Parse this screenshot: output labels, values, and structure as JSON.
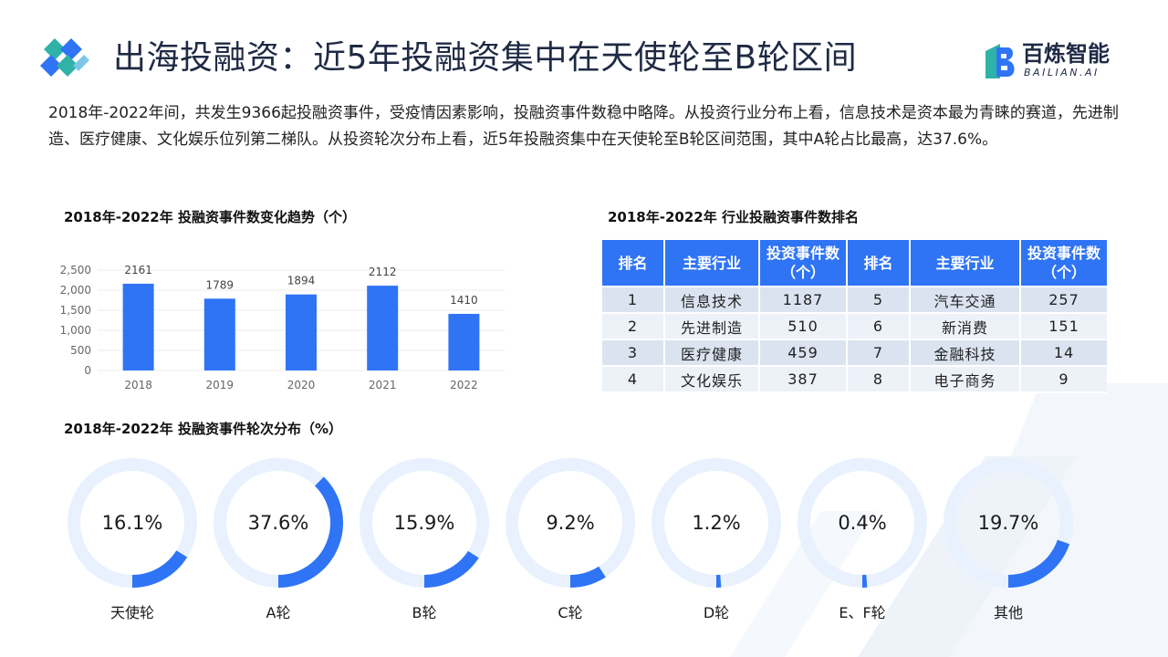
{
  "header": {
    "title": "出海投融资：近5年投融资集中在天使轮至B轮区间",
    "brand_name": "百炼智能",
    "brand_sub": "BAILIAN.AI"
  },
  "summary": "2018年-2022年间，共发生9366起投融资事件，受疫情因素影响，投融资事件数稳中略降。从投资行业分布上看，信息技术是资本最为青睐的赛道，先进制造、医疗健康、文化娱乐位列第二梯队。从投资轮次分布上看，近5年投融资集中在天使轮至B轮区间范围，其中A轮占比最高，达37.6%。",
  "colors": {
    "accent": "#2f74f5",
    "ring_track": "#e8f1fd",
    "grid": "#ececec",
    "table_header": "#2f74f5"
  },
  "chart_data": [
    {
      "type": "bar",
      "title": "2018年-2022年 投融资事件数变化趋势（个）",
      "categories": [
        "2018",
        "2019",
        "2020",
        "2021",
        "2022"
      ],
      "values": [
        2161,
        1789,
        1894,
        2112,
        1410
      ],
      "value_labels": [
        "2161",
        "1789",
        "1894",
        "2112",
        "1410"
      ],
      "yticks": [
        "0",
        "500",
        "1,000",
        "1,500",
        "2,000",
        "2,500"
      ],
      "ylim": [
        0,
        2500
      ],
      "grid": true
    },
    {
      "type": "pie",
      "title": "2018年-2022年 投融资事件轮次分布（%）",
      "categories": [
        "天使轮",
        "A轮",
        "B轮",
        "C轮",
        "D轮",
        "E、F轮",
        "其他"
      ],
      "values": [
        16.1,
        37.6,
        15.9,
        9.2,
        1.2,
        0.4,
        19.7
      ],
      "value_labels": [
        "16.1%",
        "37.6%",
        "15.9%",
        "9.2%",
        "1.2%",
        "0.4%",
        "19.7%"
      ]
    }
  ],
  "table": {
    "title": "2018年-2022年 行业投融资事件数排名",
    "headers": [
      "排名",
      "主要行业",
      "投资事件数\n（个）",
      "排名",
      "主要行业",
      "投资事件数\n（个）"
    ],
    "rows": [
      [
        "1",
        "信息技术",
        "1187",
        "5",
        "汽车交通",
        "257"
      ],
      [
        "2",
        "先进制造",
        "510",
        "6",
        "新消费",
        "151"
      ],
      [
        "3",
        "医疗健康",
        "459",
        "7",
        "金融科技",
        "14"
      ],
      [
        "4",
        "文化娱乐",
        "387",
        "8",
        "电子商务",
        "9"
      ]
    ]
  }
}
